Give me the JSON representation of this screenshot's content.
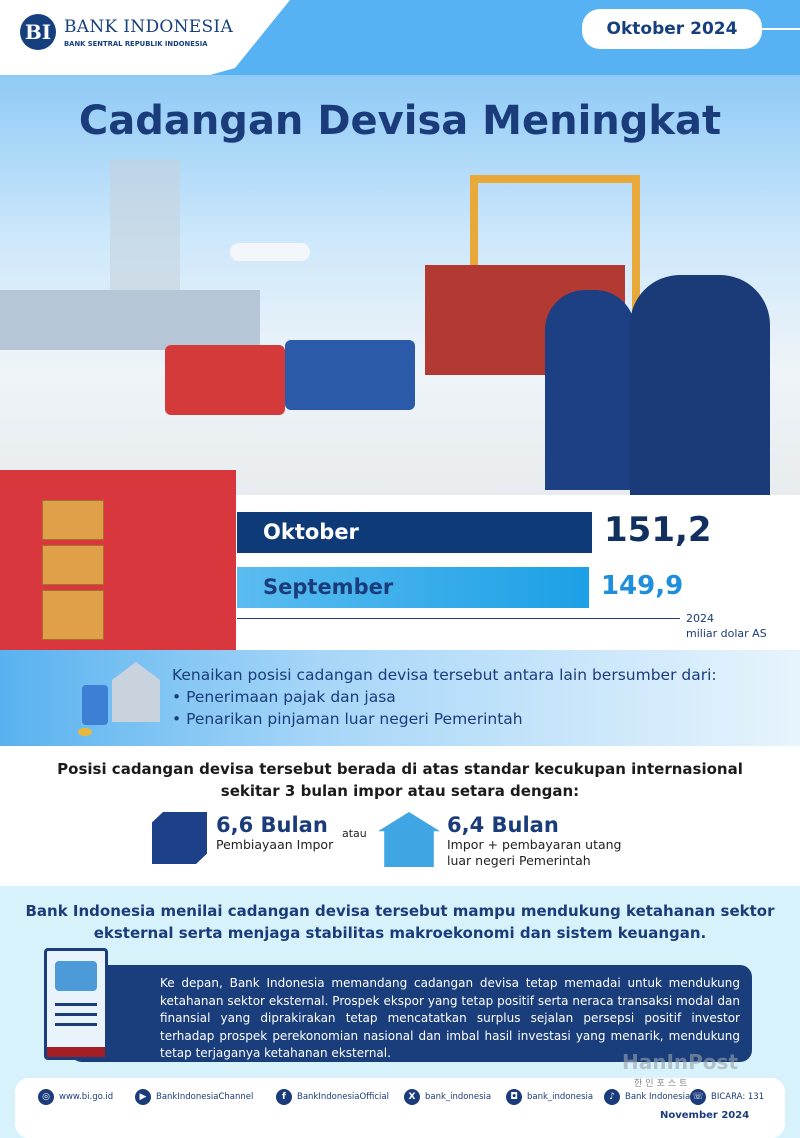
{
  "header": {
    "logo_mark": "BI",
    "logo_name": "BANK INDONESIA",
    "logo_subtitle": "BANK SENTRAL REPUBLIK INDONESIA",
    "period": "Oktober 2024"
  },
  "title": "Cadangan Devisa Meningkat",
  "chart_data": {
    "type": "bar",
    "orientation": "horizontal",
    "categories": [
      "Oktober",
      "September"
    ],
    "values": [
      151.2,
      149.9
    ],
    "value_labels": [
      "151,2",
      "149,9"
    ],
    "colors": [
      "#0f3a78",
      "#1ca0e6"
    ],
    "year_label": "2024",
    "unit": "miliar dolar AS"
  },
  "sources": {
    "heading": "Kenaikan posisi cadangan devisa tersebut antara lain bersumber dari:",
    "items": [
      "• Penerimaan pajak dan jasa",
      "• Penarikan pinjaman luar negeri Pemerintah"
    ]
  },
  "standard": {
    "text_line1": "Posisi cadangan devisa tersebut berada di atas standar kecukupan internasional",
    "text_line2": "sekitar 3 bulan impor atau setara dengan:",
    "item1_value": "6,6 Bulan",
    "item1_desc": "Pembiayaan Impor",
    "connector": "atau",
    "item2_value": "6,4 Bulan",
    "item2_desc_line1": "Impor + pembayaran utang",
    "item2_desc_line2": "luar negeri Pemerintah"
  },
  "assessment": {
    "line1": "Bank Indonesia menilai cadangan devisa tersebut mampu mendukung ketahanan sektor",
    "line2": "eksternal serta menjaga stabilitas makroekonomi dan sistem keuangan."
  },
  "outlook": "Ke depan, Bank Indonesia memandang cadangan devisa tetap memadai untuk mendukung ketahanan sektor eksternal. Prospek ekspor yang tetap positif serta neraca transaksi modal dan finansial yang diprakirakan tetap mencatatkan surplus sejalan persepsi positif investor terhadap prospek perekonomian nasional dan imbal hasil investasi yang menarik, mendukung tetap terjaganya ketahanan eksternal.",
  "watermark": {
    "name": "HanInPost",
    "sub": "한인포스트"
  },
  "footer": {
    "links": [
      {
        "icon": "globe-icon",
        "label": "www.bi.go.id"
      },
      {
        "icon": "youtube-icon",
        "label": "BankIndonesiaChannel"
      },
      {
        "icon": "facebook-icon",
        "label": "BankIndonesiaOfficial"
      },
      {
        "icon": "x-icon",
        "label": "bank_indonesia"
      },
      {
        "icon": "instagram-icon",
        "label": "bank_indonesia"
      },
      {
        "icon": "tiktok-icon",
        "label": "Bank Indonesia"
      },
      {
        "icon": "phone-icon",
        "label": "BICARA: 131"
      }
    ],
    "date": "November 2024"
  }
}
